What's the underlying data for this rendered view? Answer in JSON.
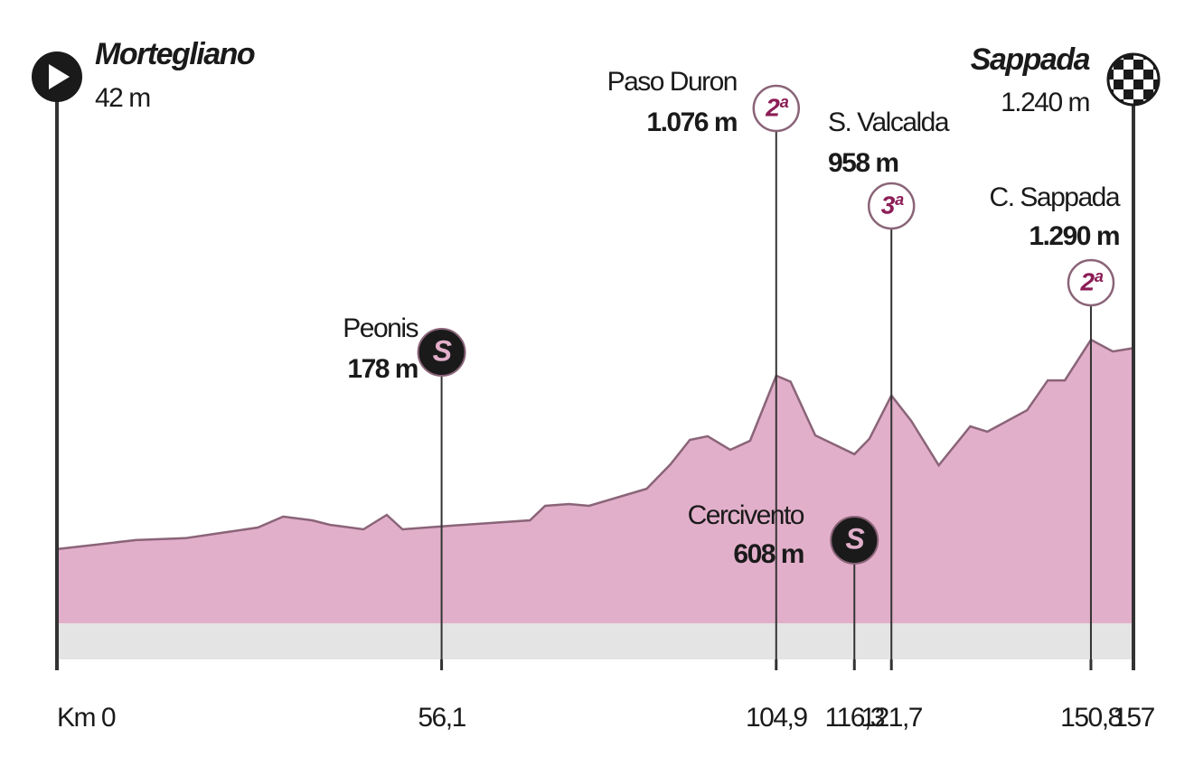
{
  "chart_data": {
    "type": "area",
    "color": "#e2afca",
    "line_color": "#8a6478",
    "x": [
      0,
      11.5,
      18.7,
      29.3,
      33,
      37.2,
      39.8,
      44.7,
      48.1,
      50.4,
      56.1,
      69,
      71.2,
      74.7,
      77.6,
      86,
      89.5,
      92.3,
      94.9,
      98.2,
      101.1,
      104.9,
      107,
      110.6,
      116.3,
      118.5,
      121.7,
      124.6,
      128.6,
      133.2,
      135.7,
      141.5,
      144.5,
      147,
      150.8,
      154,
      157
    ],
    "values": [
      42,
      96,
      107,
      171,
      236,
      214,
      187,
      160,
      246,
      160,
      178,
      214,
      300,
      311,
      300,
      402,
      548,
      693,
      715,
      634,
      688,
      1076,
      1040,
      720,
      608,
      700,
      958,
      806,
      542,
      774,
      742,
      870,
      1048,
      1048,
      1290,
      1220,
      1240
    ],
    "xlim": [
      0,
      157
    ],
    "xticks": [
      {
        "value": 0,
        "label": "Km 0"
      },
      {
        "value": 56.1,
        "label": "56,1"
      },
      {
        "value": 104.9,
        "label": "104,9"
      },
      {
        "value": 116.3,
        "label": "116,3"
      },
      {
        "value": 121.7,
        "label": "121,7"
      },
      {
        "value": 150.8,
        "label": "150,8"
      },
      157
    ],
    "ylim": [
      -400,
      3100
    ],
    "waypoints": [
      {
        "kind": "start",
        "km": 0,
        "name": "Mortegliano",
        "elevation": 42,
        "elevation_label": "42 m"
      },
      {
        "kind": "sprint",
        "km": 56.1,
        "name": "Peonis",
        "elevation": 178,
        "elevation_label": "178 m",
        "category": "S"
      },
      {
        "kind": "climb",
        "km": 104.9,
        "name": "Paso Duron",
        "elevation": 1076,
        "elevation_label": "1.076 m",
        "category": "2ª"
      },
      {
        "kind": "sprint",
        "km": 116.3,
        "name": "Cercivento",
        "elevation": 608,
        "elevation_label": "608 m",
        "category": "S"
      },
      {
        "kind": "climb",
        "km": 121.7,
        "name": "S. Valcalda",
        "elevation": 958,
        "elevation_label": "958 m",
        "category": "3ª"
      },
      {
        "kind": "climb",
        "km": 150.8,
        "name": "C. Sappada",
        "elevation": 1290,
        "elevation_label": "1.290 m",
        "category": "2ª"
      },
      {
        "kind": "finish",
        "km": 157,
        "name": "Sappada",
        "elevation": 1240,
        "elevation_label": "1.240 m"
      }
    ]
  }
}
